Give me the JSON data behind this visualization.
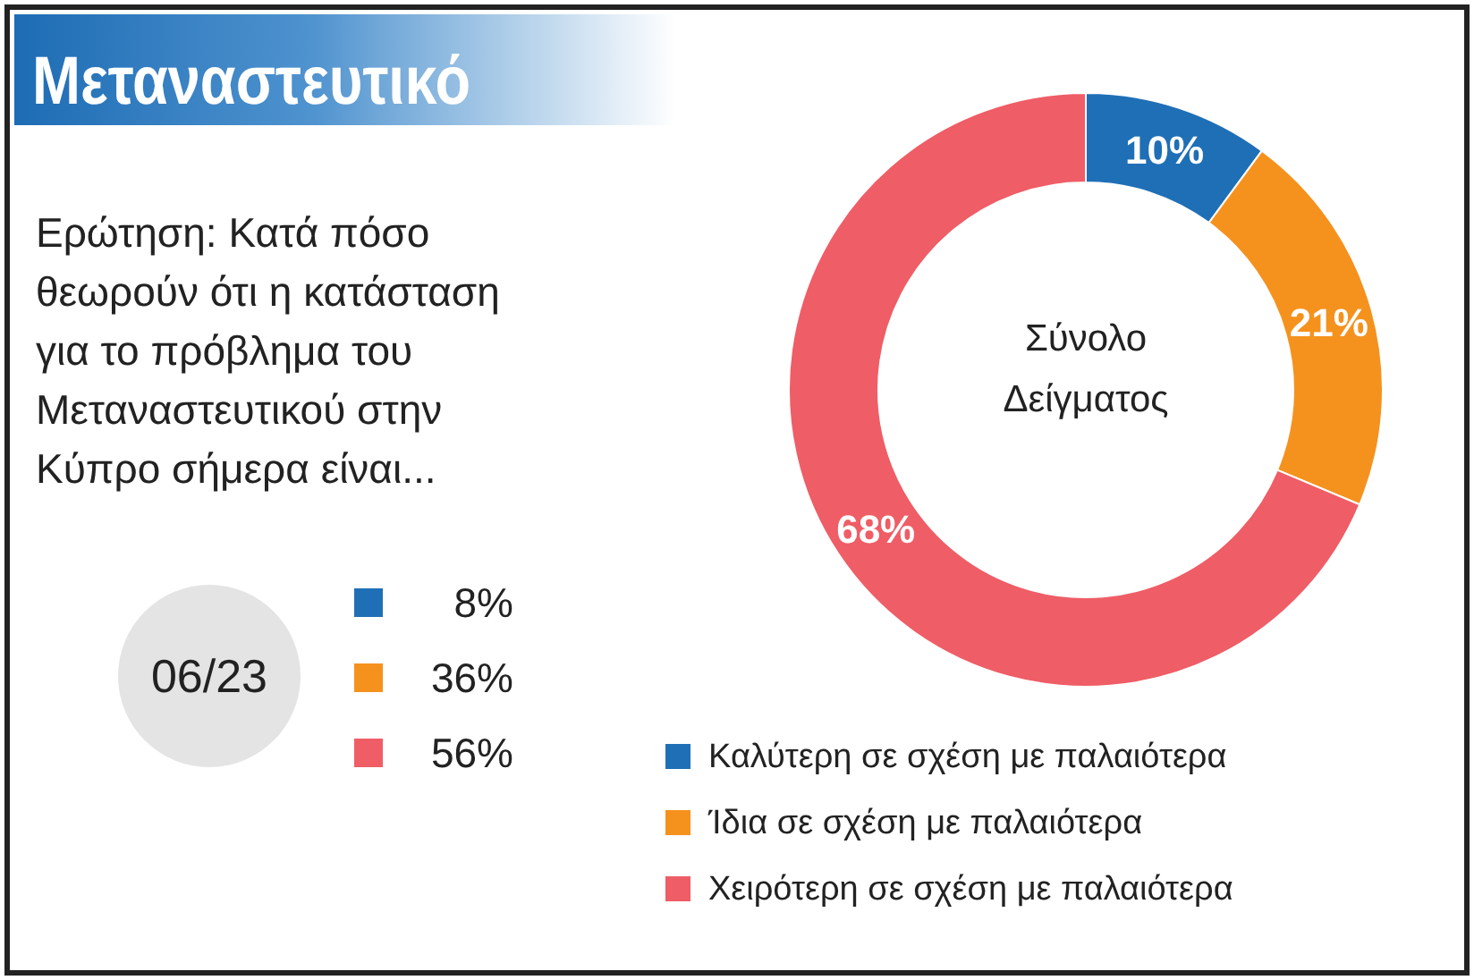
{
  "chart_data": [
    {
      "type": "donut",
      "title": "Μεταναστευτικό",
      "subtitle": "Ερώτηση: Κατά πόσο θεωρούν ότι η κατάσταση για το πρόβλημα του Μεταναστευτικού στην Κύπρο σήμερα είναι...",
      "annotations": [
        "Σύνολο Δείγματος"
      ],
      "categories": [
        "Καλύτερη σε σχέση με παλαιότερα",
        "Ίδια σε σχέση με παλαιότερα",
        "Χειρότερη σε σχέση με παλαιότερα"
      ],
      "values": [
        10,
        21,
        68
      ],
      "value_labels": [
        "10%",
        "21%",
        "68%"
      ],
      "colors": [
        "#1f6fb6",
        "#f5921e",
        "#ef5d66"
      ],
      "legend": "bottom"
    },
    {
      "type": "other",
      "title": "06/23",
      "categories": [
        null,
        null,
        null
      ],
      "values": [
        8,
        36,
        56
      ],
      "value_labels": [
        "8%",
        "36%",
        "56%"
      ],
      "colors": [
        "#1f6fb6",
        "#f5921e",
        "#ef5d66"
      ]
    }
  ]
}
